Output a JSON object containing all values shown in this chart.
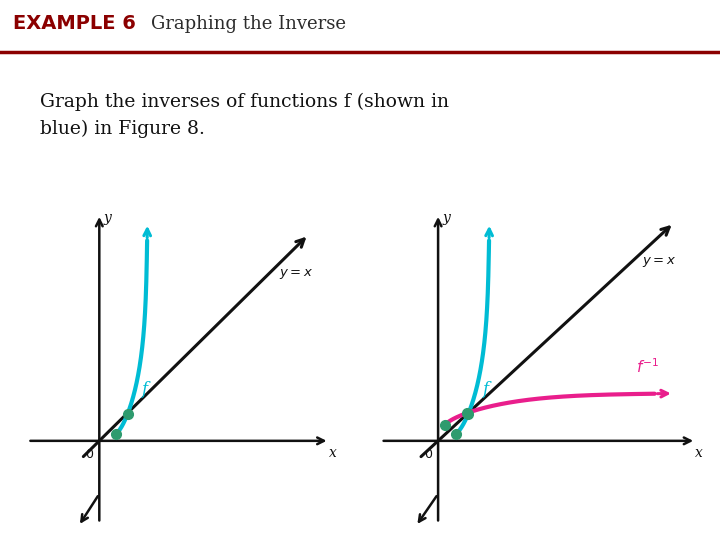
{
  "title_example": "EXAMPLE 6",
  "title_text": "Graphing the Inverse",
  "body_text": "Graph the inverses of functions f (shown in\nblue) in Figure 8.",
  "header_bg": "#f5edd6",
  "header_line_color": "#8b0000",
  "header_example_color": "#8b0000",
  "header_title_color": "#2c2c2c",
  "body_bg": "#ffffff",
  "cyan_color": "#00bcd4",
  "magenta_color": "#e91e8c",
  "green_dot_color": "#2e9b6e",
  "black_color": "#111111",
  "dashed_color": "#2e9b6e"
}
